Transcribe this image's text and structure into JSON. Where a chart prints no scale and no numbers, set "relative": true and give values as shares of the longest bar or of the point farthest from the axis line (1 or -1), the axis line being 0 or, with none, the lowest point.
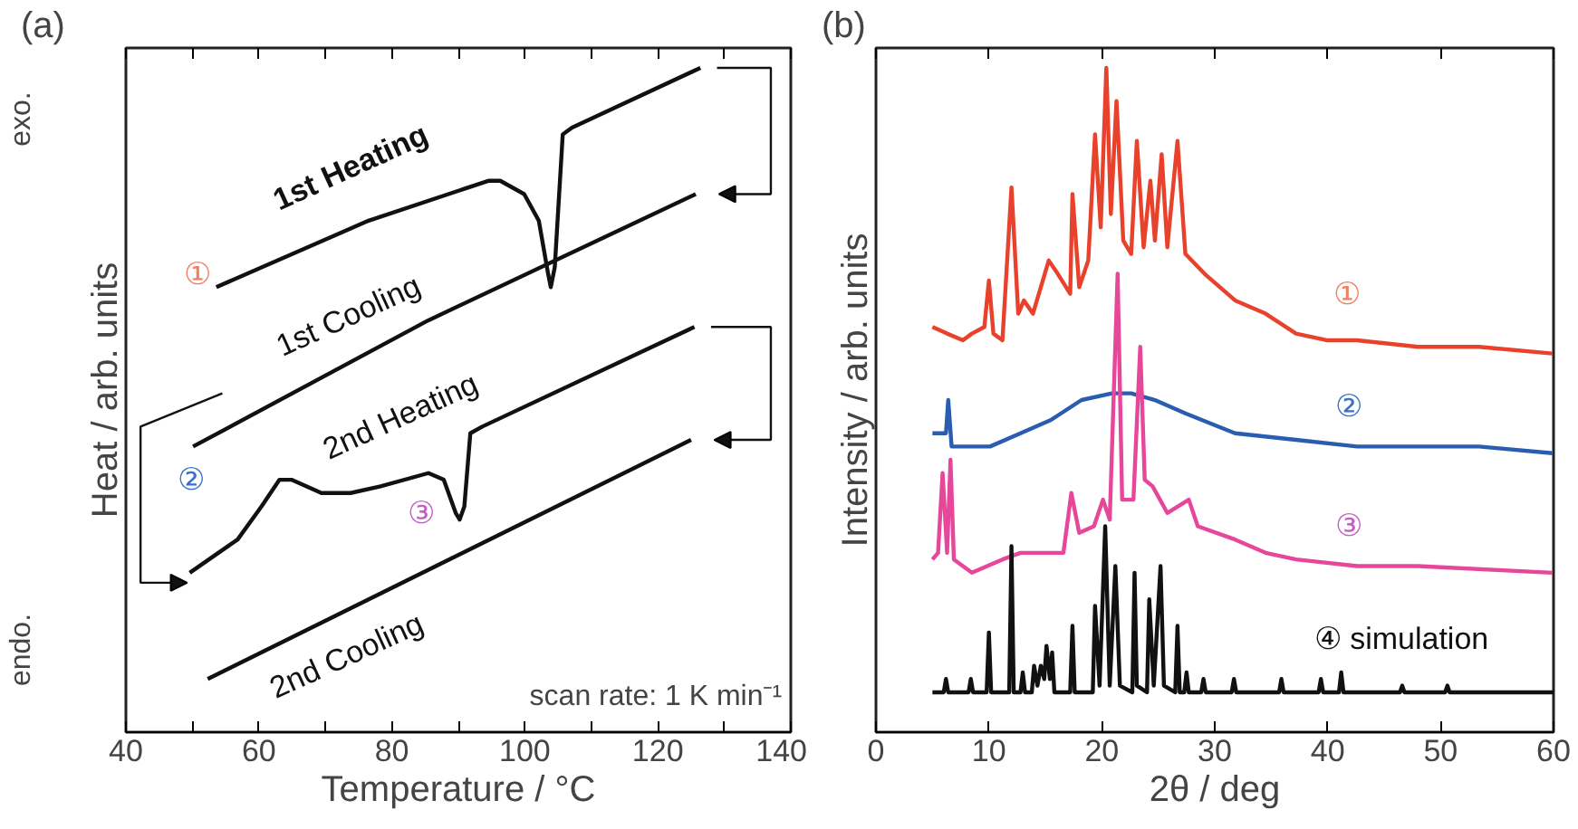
{
  "chart_data": [
    {
      "type": "line",
      "title": "(a)",
      "xlabel": "Temperature / °C",
      "ylabel": "Heat / arb. units",
      "relative": true,
      "xlim": [
        40,
        140
      ],
      "xticks": [
        40,
        {
          "value": 50,
          "label": null
        },
        60,
        {
          "value": 70,
          "label": null
        },
        80,
        {
          "value": 90,
          "label": null
        },
        100,
        {
          "value": 110,
          "label": null
        },
        120,
        {
          "value": 130,
          "label": null
        },
        140
      ],
      "series": [
        {
          "name": "1st Heating",
          "color": "#111111",
          "x": [
            53.6,
            76.5,
            94.5,
            96.3,
            99.9,
            102.1,
            103.5,
            103.9,
            104.5,
            105.7,
            107.1,
            126.4
          ],
          "values": [
            0.67,
            0.77,
            0.83,
            0.83,
            0.81,
            0.77,
            0.69,
            0.67,
            0.7,
            0.9,
            0.91,
            1.0
          ]
        },
        {
          "name": "1st Cooling",
          "color": "#111111",
          "x": [
            50.1,
            85.5,
            125.7
          ],
          "values": [
            0.43,
            0.62,
            0.81
          ]
        },
        {
          "name": "2nd Heating",
          "color": "#111111",
          "x": [
            49.6,
            56.8,
            60.4,
            63.1,
            64.9,
            69.4,
            73.8,
            78.3,
            85.5,
            87.8,
            89.6,
            90.2,
            90.9,
            91.8,
            93.6,
            125.5
          ],
          "values": [
            0.24,
            0.29,
            0.34,
            0.38,
            0.38,
            0.36,
            0.36,
            0.37,
            0.39,
            0.38,
            0.33,
            0.32,
            0.34,
            0.45,
            0.46,
            0.61
          ]
        },
        {
          "name": "2nd Cooling",
          "color": "#111111",
          "x": [
            52.3,
            125.0
          ],
          "values": [
            0.08,
            0.44
          ]
        }
      ],
      "annotations": [
        "①",
        "②",
        "③",
        "exo.",
        "endo.",
        "scan rate: 1 K min⁻¹"
      ]
    },
    {
      "type": "line",
      "title": "(b)",
      "xlabel": "2θ / deg",
      "ylabel": "Intensity / arb. units",
      "relative": true,
      "xlim": [
        0,
        60
      ],
      "xticks": [
        0,
        10,
        20,
        30,
        40,
        50,
        60
      ],
      "series": [
        {
          "color": "#e8412c",
          "x": [
            5.0,
            6.3,
            7.7,
            8.5,
            9.6,
            10.0,
            10.4,
            11.2,
            12.0,
            12.6,
            13.1,
            13.9,
            15.3,
            16.1,
            17.2,
            17.4,
            18.0,
            18.8,
            19.4,
            19.9,
            20.4,
            20.8,
            21.3,
            21.9,
            22.6,
            23.1,
            23.7,
            24.3,
            24.7,
            25.3,
            25.8,
            26.7,
            27.4,
            29.1,
            31.8,
            34.5,
            37.2,
            39.9,
            42.6,
            48.0,
            53.4,
            59.9
          ],
          "values": [
            0.61,
            0.6,
            0.59,
            0.6,
            0.61,
            0.68,
            0.6,
            0.59,
            0.82,
            0.63,
            0.65,
            0.63,
            0.71,
            0.69,
            0.66,
            0.81,
            0.67,
            0.71,
            0.9,
            0.76,
            1.0,
            0.78,
            0.95,
            0.74,
            0.72,
            0.89,
            0.73,
            0.83,
            0.74,
            0.87,
            0.73,
            0.89,
            0.72,
            0.69,
            0.65,
            0.63,
            0.6,
            0.59,
            0.59,
            0.58,
            0.58,
            0.57
          ]
        },
        {
          "color": "#2a5db0",
          "x": [
            5.0,
            6.2,
            6.4,
            6.7,
            8.0,
            10.1,
            12.8,
            15.5,
            18.2,
            20.9,
            22.6,
            24.7,
            27.4,
            31.8,
            37.2,
            42.6,
            48.0,
            53.4,
            59.9
          ],
          "values": [
            0.45,
            0.45,
            0.5,
            0.43,
            0.43,
            0.43,
            0.45,
            0.47,
            0.5,
            0.51,
            0.51,
            0.5,
            0.48,
            0.45,
            0.44,
            0.43,
            0.43,
            0.43,
            0.42
          ]
        },
        {
          "color": "#e6479a",
          "x": [
            5.0,
            5.5,
            5.9,
            6.3,
            6.6,
            6.9,
            8.5,
            11.2,
            12.8,
            14.5,
            16.6,
            17.3,
            18.0,
            19.3,
            20.1,
            20.7,
            21.4,
            21.8,
            22.8,
            23.4,
            23.8,
            24.5,
            25.8,
            27.7,
            28.5,
            31.8,
            34.5,
            37.2,
            42.6,
            48.0,
            59.9
          ],
          "values": [
            0.26,
            0.27,
            0.39,
            0.27,
            0.41,
            0.26,
            0.24,
            0.26,
            0.27,
            0.27,
            0.27,
            0.36,
            0.3,
            0.31,
            0.35,
            0.32,
            0.69,
            0.35,
            0.35,
            0.58,
            0.38,
            0.37,
            0.33,
            0.35,
            0.31,
            0.29,
            0.27,
            0.26,
            0.25,
            0.25,
            0.24
          ]
        },
        {
          "color": "#111111",
          "x": [
            5.0,
            6.0,
            6.2,
            6.4,
            8.2,
            8.4,
            8.6,
            9.8,
            10.0,
            10.2,
            11.8,
            12.0,
            12.2,
            12.8,
            13.0,
            13.2,
            13.8,
            14.0,
            14.3,
            14.6,
            14.9,
            15.1,
            15.4,
            15.6,
            15.8,
            17.2,
            17.4,
            17.6,
            19.2,
            19.4,
            19.8,
            20.3,
            20.7,
            21.2,
            21.6,
            22.7,
            22.9,
            23.1,
            24.0,
            24.2,
            24.6,
            25.2,
            25.5,
            26.5,
            26.7,
            26.9,
            27.3,
            27.5,
            27.7,
            28.8,
            29.0,
            29.2,
            31.5,
            31.7,
            31.9,
            35.7,
            35.9,
            36.1,
            39.2,
            39.4,
            39.6,
            41.0,
            41.2,
            41.4,
            46.4,
            46.6,
            46.8,
            50.4,
            50.6,
            50.8,
            60.0
          ],
          "values": [
            0.06,
            0.06,
            0.08,
            0.06,
            0.06,
            0.08,
            0.06,
            0.06,
            0.15,
            0.06,
            0.06,
            0.28,
            0.06,
            0.06,
            0.09,
            0.06,
            0.06,
            0.1,
            0.07,
            0.1,
            0.08,
            0.13,
            0.08,
            0.12,
            0.06,
            0.06,
            0.16,
            0.06,
            0.06,
            0.19,
            0.07,
            0.31,
            0.07,
            0.25,
            0.07,
            0.06,
            0.24,
            0.07,
            0.06,
            0.2,
            0.07,
            0.25,
            0.07,
            0.06,
            0.16,
            0.06,
            0.06,
            0.09,
            0.06,
            0.06,
            0.08,
            0.06,
            0.06,
            0.08,
            0.06,
            0.06,
            0.08,
            0.06,
            0.06,
            0.08,
            0.06,
            0.06,
            0.09,
            0.06,
            0.06,
            0.07,
            0.06,
            0.06,
            0.07,
            0.06,
            0.06
          ]
        }
      ],
      "annotations": [
        "①",
        "②",
        "③",
        "④ simulation"
      ]
    }
  ]
}
